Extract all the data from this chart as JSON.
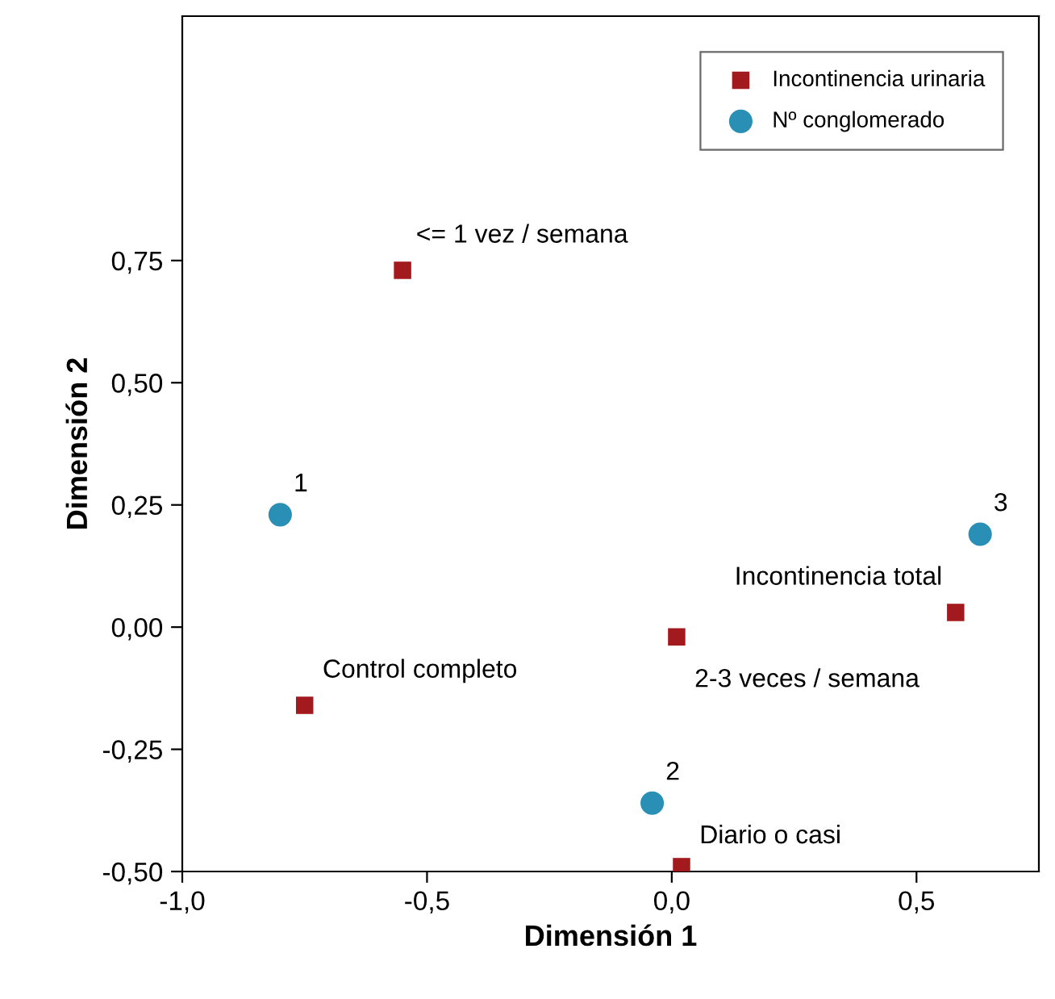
{
  "chart_data": {
    "type": "scatter",
    "xlabel": "Dimensión 1",
    "ylabel": "Dimensión 2",
    "xlim": [
      -1.0,
      0.75
    ],
    "ylim": [
      -0.5,
      1.25
    ],
    "xticks": [
      {
        "value": -1.0,
        "label": "-1,0"
      },
      {
        "value": -0.5,
        "label": "-0,5"
      },
      {
        "value": 0.0,
        "label": "0,0"
      },
      {
        "value": 0.5,
        "label": "0,5"
      }
    ],
    "yticks": [
      {
        "value": -0.5,
        "label": "-0,50"
      },
      {
        "value": -0.25,
        "label": "-0,25"
      },
      {
        "value": 0.0,
        "label": "0,00"
      },
      {
        "value": 0.25,
        "label": "0,25"
      },
      {
        "value": 0.5,
        "label": "0,50"
      },
      {
        "value": 0.75,
        "label": "0,75"
      }
    ],
    "grid": false,
    "legend": "top right",
    "series": [
      {
        "name": "Incontinencia urinaria",
        "color": "#a31a1e",
        "marker": "square",
        "x": [
          -0.55,
          -0.75,
          0.01,
          0.58,
          0.02
        ],
        "values": [
          0.73,
          -0.16,
          -0.02,
          0.03,
          -0.49
        ]
      },
      {
        "name": "Nº conglomerado",
        "color": "#2a8fb5",
        "marker": "circle",
        "x": [
          -0.8,
          -0.04,
          0.63
        ],
        "values": [
          0.23,
          -0.36,
          0.19
        ]
      }
    ],
    "annotations": [
      {
        "text": "<= 1 vez / semana",
        "x": -0.55,
        "y": 0.73
      },
      {
        "text": "Control completo",
        "x": -0.75,
        "y": -0.16
      },
      {
        "text": "2-3 veces / semana",
        "x": 0.01,
        "y": -0.02
      },
      {
        "text": "Incontinencia total",
        "x": 0.58,
        "y": 0.03
      },
      {
        "text": "Diario o casi",
        "x": 0.02,
        "y": -0.49
      },
      {
        "text": "1",
        "x": -0.8,
        "y": 0.23
      },
      {
        "text": "2",
        "x": -0.04,
        "y": -0.36
      },
      {
        "text": "3",
        "x": 0.63,
        "y": 0.19
      }
    ]
  }
}
